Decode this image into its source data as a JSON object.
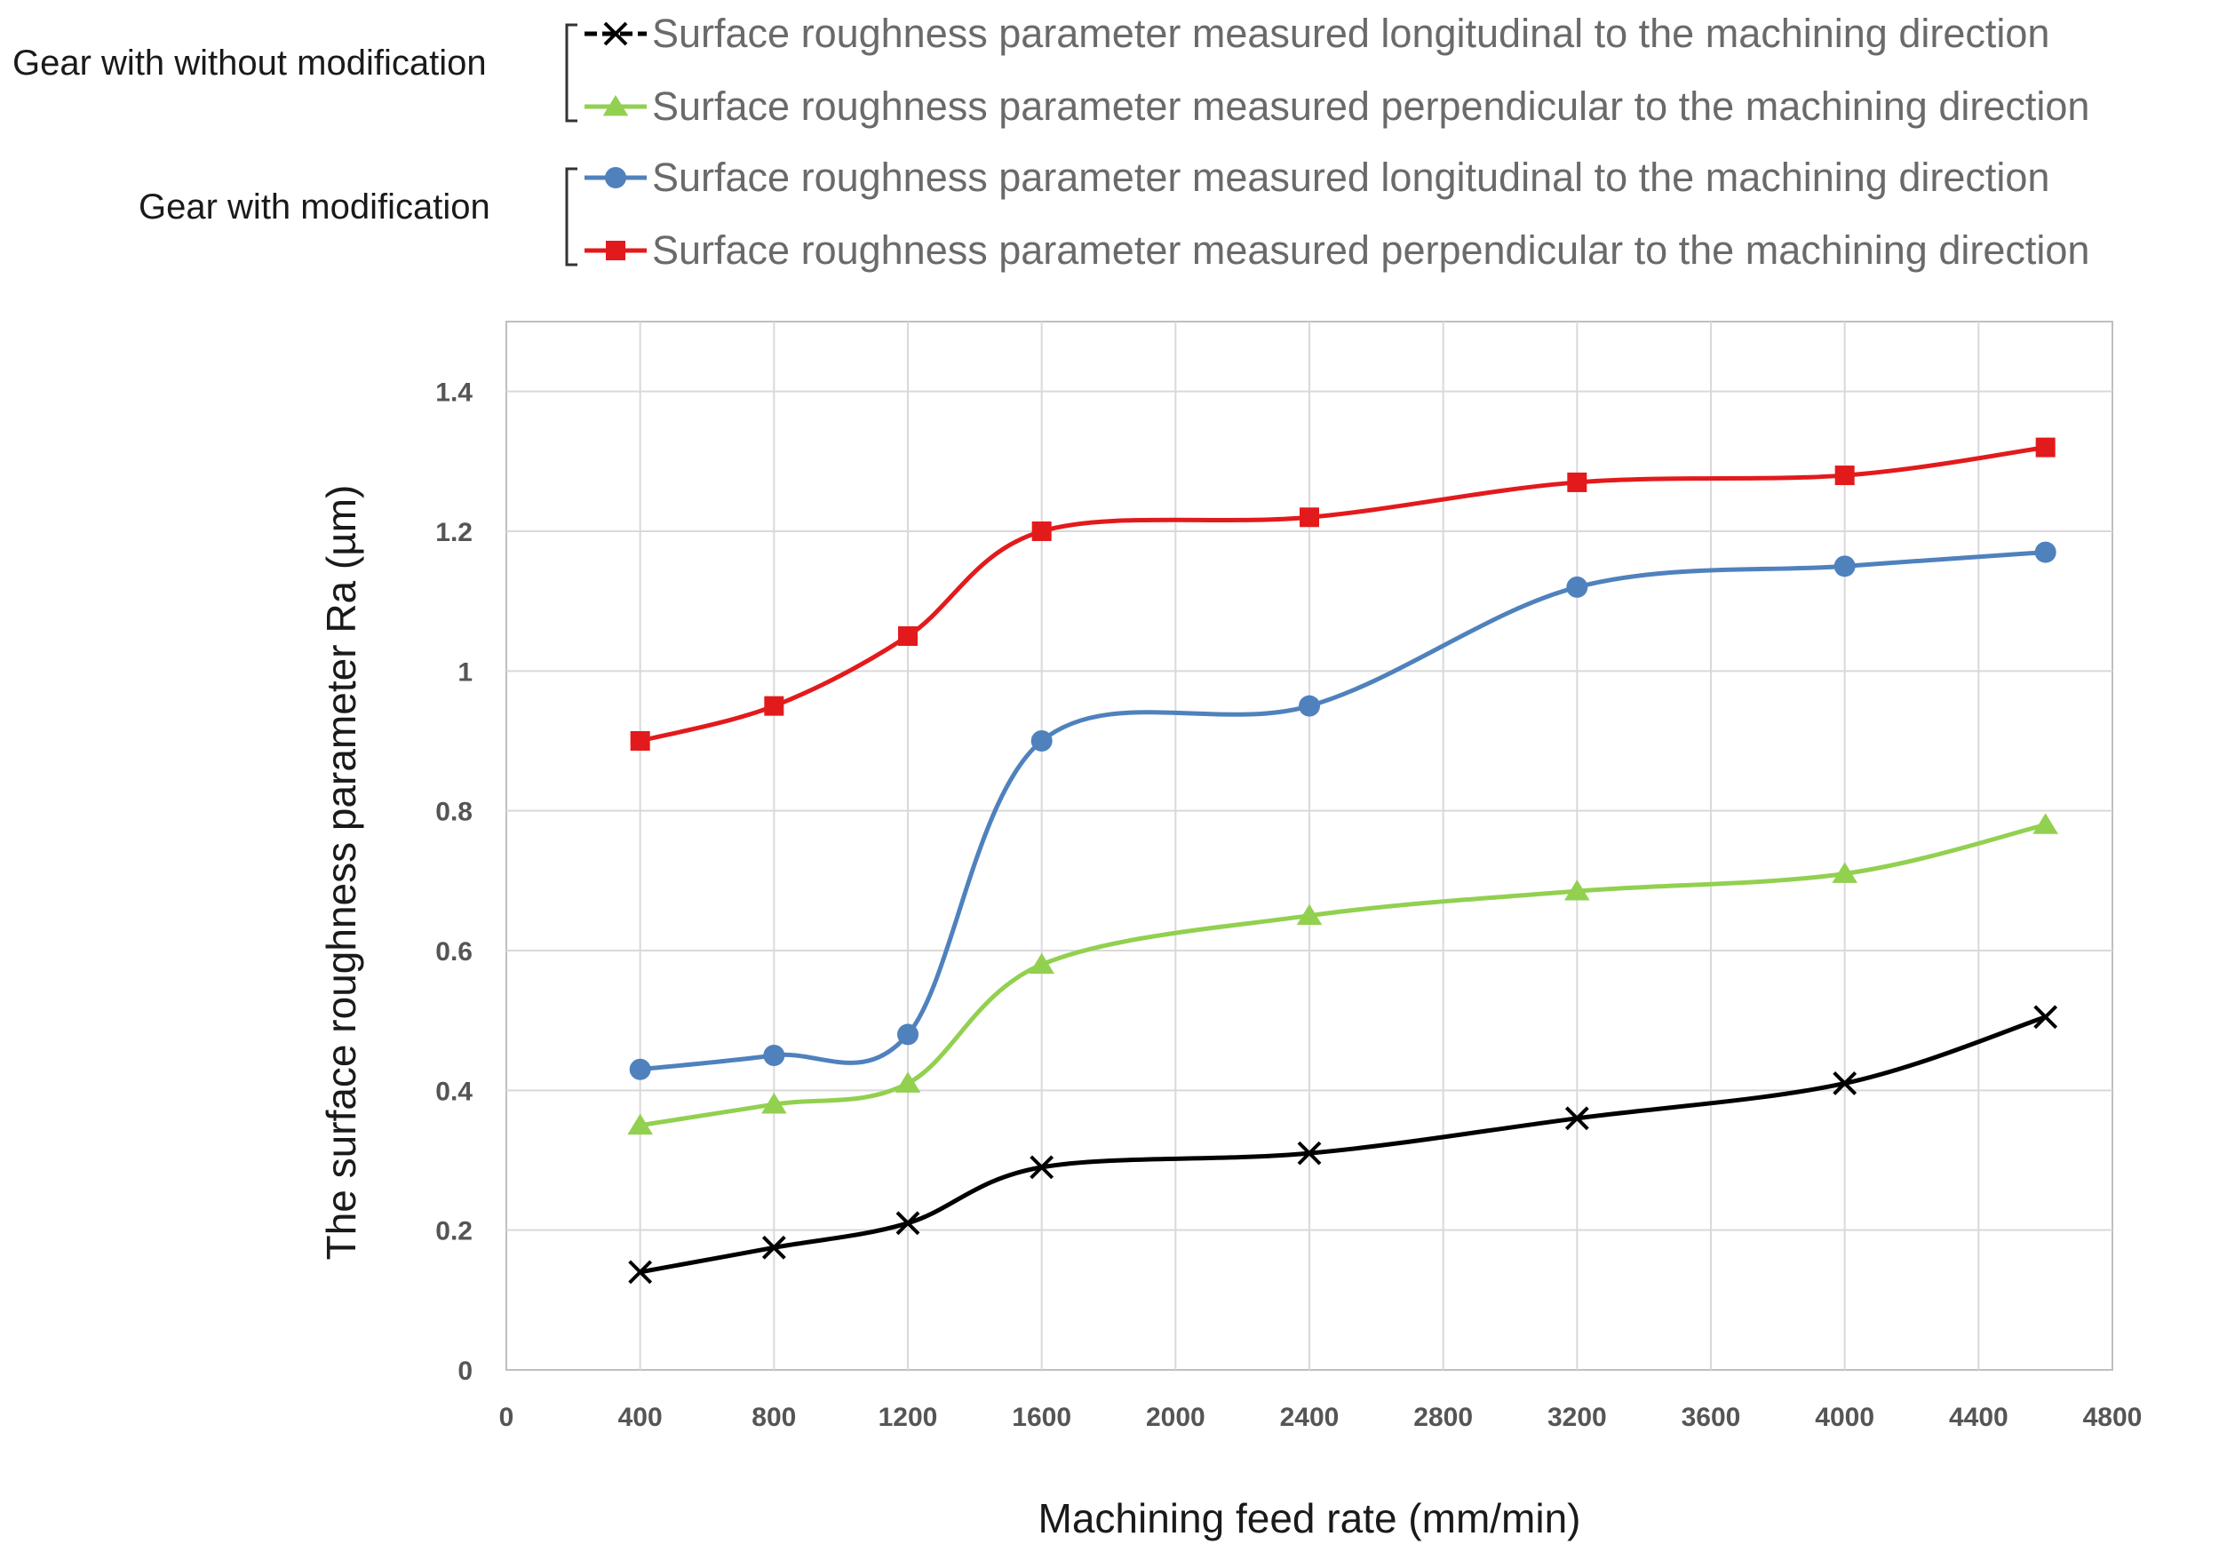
{
  "legend": {
    "groups": [
      {
        "label": "Gear with without modification",
        "entries": [
          {
            "series_index": 0,
            "text": "Surface roughness parameter measured longitudinal to the machining direction"
          },
          {
            "series_index": 1,
            "text": "Surface roughness parameter measured perpendicular to the machining direction"
          }
        ]
      },
      {
        "label": "Gear with modification",
        "entries": [
          {
            "series_index": 2,
            "text": "Surface roughness parameter measured longitudinal to the machining direction"
          },
          {
            "series_index": 3,
            "text": "Surface roughness parameter measured perpendicular to the machining direction"
          }
        ]
      }
    ]
  },
  "chart_data": {
    "type": "line",
    "title": "",
    "xlabel": "Machining feed rate (mm/min)",
    "ylabel": "The surface roughness parameter Ra (µm)",
    "xlim": [
      0,
      4800
    ],
    "ylim": [
      0,
      1.5
    ],
    "xticks": [
      0,
      400,
      800,
      1200,
      1600,
      2000,
      2400,
      2800,
      3200,
      3600,
      4000,
      4400,
      4800
    ],
    "yticks": [
      0,
      0.2,
      0.4,
      0.6,
      0.8,
      1,
      1.2,
      1.4
    ],
    "ytick_labels": [
      "0",
      "0.2",
      "0.4",
      "0.6",
      "0.8",
      "1",
      "1.2",
      "1.4"
    ],
    "grid": true,
    "smooth": true,
    "x": [
      400,
      800,
      1200,
      1600,
      2400,
      3200,
      4000,
      4600
    ],
    "series": [
      {
        "name": "Gear with without modification – longitudinal",
        "color": "#000000",
        "marker": "x",
        "values": [
          0.14,
          0.175,
          0.21,
          0.29,
          0.31,
          0.36,
          0.41,
          0.505
        ]
      },
      {
        "name": "Gear with without modification – perpendicular",
        "color": "#92d050",
        "marker": "triangle",
        "values": [
          0.35,
          0.38,
          0.41,
          0.58,
          0.65,
          0.685,
          0.71,
          0.78
        ]
      },
      {
        "name": "Gear with modification – longitudinal",
        "color": "#4f81bd",
        "marker": "circle",
        "values": [
          0.43,
          0.45,
          0.48,
          0.9,
          0.95,
          1.12,
          1.15,
          1.17
        ]
      },
      {
        "name": "Gear with modification – perpendicular",
        "color": "#e31a1c",
        "marker": "square",
        "values": [
          0.9,
          0.95,
          1.05,
          1.2,
          1.22,
          1.27,
          1.28,
          1.32
        ]
      }
    ]
  }
}
